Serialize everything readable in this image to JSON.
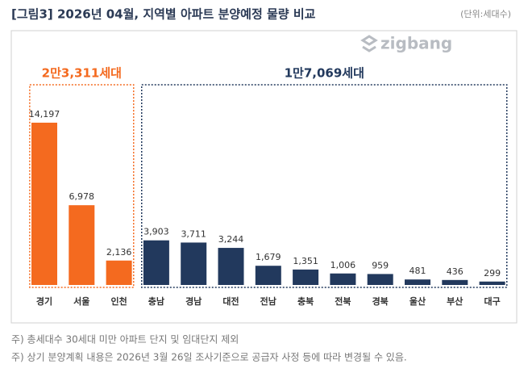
{
  "chart_data": {
    "type": "bar",
    "title": "[그림3] 2026년 04월, 지역별 아파트 분양예정 물량 비교",
    "unit": "(단위:세대수)",
    "logo": "zigbang",
    "ylim": [
      0,
      15000
    ],
    "groups": [
      {
        "label": "2만3,311세대",
        "color": "#f46a1f",
        "categories": [
          "경기",
          "서울",
          "인천"
        ],
        "values": [
          14197,
          6978,
          2136
        ],
        "value_labels": [
          "14,197",
          "6,978",
          "2,136"
        ]
      },
      {
        "label": "1만7,069세대",
        "color": "#22395d",
        "categories": [
          "충남",
          "경남",
          "대전",
          "전남",
          "충북",
          "전북",
          "경북",
          "울산",
          "부산",
          "대구"
        ],
        "values": [
          3903,
          3711,
          3244,
          1679,
          1351,
          1006,
          959,
          481,
          436,
          299
        ],
        "value_labels": [
          "3,903",
          "3,711",
          "3,244",
          "1,679",
          "1,351",
          "1,006",
          "959",
          "481",
          "436",
          "299"
        ]
      }
    ],
    "notes": [
      "주) 총세대수 30세대 미만 아파트 단지 및 임대단지 제외",
      "주) 상기 분양계획 내용은 2026년 3월 26일 조사기준으로 공급자 사정 등에 따라 변경될 수 있음."
    ]
  }
}
